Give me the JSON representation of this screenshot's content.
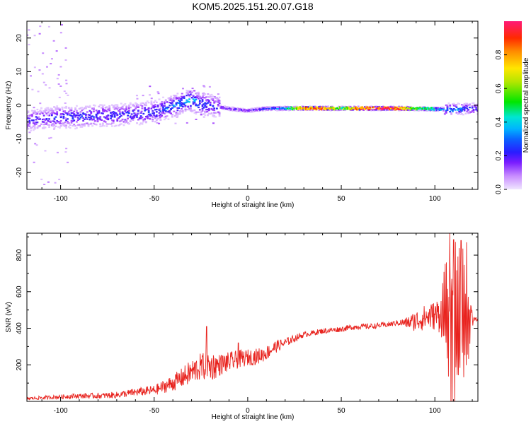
{
  "figure": {
    "title": "KOM5.2025.151.20.07.G18"
  },
  "chart_data": [
    {
      "type": "heatmap",
      "title": "KOM5.2025.151.20.07.G18",
      "xlabel": "Height of straight line (km)",
      "ylabel": "Frequency (Hz)",
      "xlim": [
        -118,
        123
      ],
      "ylim": [
        -25,
        25
      ],
      "xticks": [
        -100,
        -50,
        0,
        50,
        100
      ],
      "xtick_labels": [
        "-100",
        "-50",
        "0",
        "50",
        "100"
      ],
      "yticks": [
        -20,
        -10,
        0,
        10,
        20
      ],
      "ytick_labels": [
        "-20",
        "-10",
        "0",
        "10",
        "20"
      ],
      "grid": false,
      "colormap": [
        "#f0e6ff",
        "#d4a8ff",
        "#9b30ff",
        "#3a1cff",
        "#1a4cff",
        "#00b4ff",
        "#00e6d2",
        "#00e600",
        "#c8e600",
        "#ffe600",
        "#ff9a00",
        "#ff2a00",
        "#ff1a70"
      ],
      "colorbar": {
        "label": "Normalized spectral amplitude",
        "range": [
          0,
          1
        ],
        "ticks": [
          0.0,
          0.2,
          0.4,
          0.6,
          0.8
        ],
        "tick_labels": [
          "0.0",
          "0.2",
          "0.4",
          "0.6",
          "0.8"
        ]
      },
      "ridge": {
        "x": [
          -118,
          -110,
          -100,
          -90,
          -80,
          -70,
          -60,
          -50,
          -45,
          -40,
          -35,
          -30,
          -25,
          -20,
          -15,
          -10,
          -5,
          0,
          5,
          10,
          20,
          30,
          40,
          50,
          60,
          70,
          80,
          90,
          100,
          110,
          118,
          123
        ],
        "freq": [
          -4.5,
          -4.0,
          -3.5,
          -3.5,
          -3.0,
          -3.0,
          -2.5,
          -2.0,
          -1.0,
          -0.5,
          1.0,
          1.5,
          0.5,
          0.0,
          -0.5,
          -1.0,
          -1.3,
          -1.6,
          -1.2,
          -1.0,
          -0.9,
          -0.9,
          -0.9,
          -0.9,
          -0.9,
          -0.9,
          -0.9,
          -1.0,
          -1.1,
          -1.2,
          -1.0,
          -1.0
        ],
        "amplitude": [
          0.25,
          0.25,
          0.3,
          0.3,
          0.3,
          0.3,
          0.3,
          0.35,
          0.35,
          0.4,
          0.4,
          0.45,
          0.35,
          0.3,
          0.25,
          0.25,
          0.25,
          0.25,
          0.3,
          0.35,
          0.5,
          0.85,
          0.9,
          0.6,
          0.9,
          0.95,
          0.9,
          0.6,
          0.55,
          0.45,
          0.35,
          0.3
        ]
      }
    },
    {
      "type": "line",
      "xlabel": "Height of straight line (km)",
      "ylabel": "SNR (v/v)",
      "xlim": [
        -118,
        123
      ],
      "ylim": [
        0,
        920
      ],
      "xticks": [
        -100,
        -50,
        0,
        50,
        100
      ],
      "xtick_labels": [
        "-100",
        "-50",
        "0",
        "50",
        "100"
      ],
      "yticks": [
        200,
        400,
        600,
        800
      ],
      "ytick_labels": [
        "200",
        "400",
        "600",
        "800"
      ],
      "grid": false,
      "series": [
        {
          "color": "#e8231e",
          "x": [
            -118,
            -110,
            -100,
            -90,
            -80,
            -70,
            -60,
            -50,
            -45,
            -40,
            -35,
            -30,
            -25,
            -20,
            -15,
            -10,
            -5,
            0,
            5,
            10,
            15,
            20,
            25,
            30,
            35,
            40,
            45,
            50,
            55,
            60,
            65,
            70,
            75,
            80,
            85,
            90,
            95,
            100,
            103,
            105,
            107,
            109,
            111,
            113,
            115,
            117,
            119,
            121,
            123
          ],
          "values": [
            15,
            20,
            25,
            30,
            30,
            35,
            50,
            60,
            80,
            100,
            130,
            160,
            190,
            190,
            200,
            215,
            230,
            240,
            245,
            265,
            300,
            320,
            345,
            365,
            375,
            385,
            390,
            395,
            405,
            410,
            410,
            415,
            420,
            430,
            430,
            440,
            460,
            470,
            480,
            470,
            460,
            430,
            400,
            420,
            450,
            440,
            440,
            450,
            450
          ],
          "noise": [
            8,
            10,
            12,
            14,
            15,
            18,
            22,
            28,
            35,
            45,
            55,
            70,
            75,
            85,
            60,
            55,
            50,
            45,
            45,
            40,
            35,
            25,
            20,
            15,
            15,
            15,
            15,
            15,
            15,
            15,
            15,
            15,
            15,
            15,
            30,
            60,
            70,
            80,
            110,
            180,
            260,
            320,
            340,
            300,
            260,
            200,
            100,
            10,
            10
          ]
        }
      ],
      "peaks": {
        "x": [
          -22,
          -5,
          108,
          110,
          114,
          117
        ],
        "values": [
          410,
          320,
          920,
          885,
          880,
          870
        ]
      }
    }
  ]
}
